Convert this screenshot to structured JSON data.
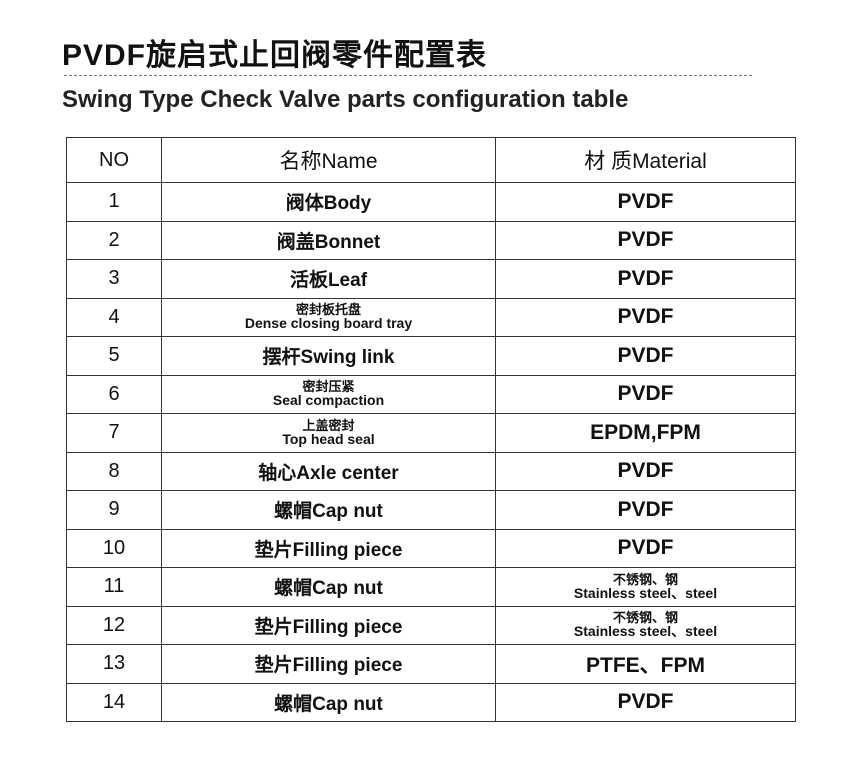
{
  "title": "PVDF旋启式止回阀零件配置表",
  "subtitle": "Swing Type Check Valve parts configuration table",
  "table": {
    "headers": [
      "NO",
      "名称Name",
      "材  质Material"
    ],
    "rows": [
      {
        "no": "1",
        "name": "阀体Body",
        "material": "PVDF"
      },
      {
        "no": "2",
        "name": "阀盖Bonnet",
        "material": "PVDF"
      },
      {
        "no": "3",
        "name": "活板Leaf",
        "material": "PVDF"
      },
      {
        "no": "4",
        "name_zh": "密封板托盘",
        "name_en": "Dense closing board tray",
        "material": "PVDF"
      },
      {
        "no": "5",
        "name": "摆杆Swing link",
        "material": "PVDF"
      },
      {
        "no": "6",
        "name_zh": "密封压紧",
        "name_en": "Seal  compaction",
        "material": "PVDF"
      },
      {
        "no": "7",
        "name_zh": "上盖密封",
        "name_en": "Top  head  seal",
        "material": "EPDM,FPM"
      },
      {
        "no": "8",
        "name": "轴心Axle center",
        "material": "PVDF"
      },
      {
        "no": "9",
        "name": "螺帽Cap nut",
        "material": "PVDF"
      },
      {
        "no": "10",
        "name": "垫片Filling piece",
        "material": "PVDF"
      },
      {
        "no": "11",
        "name": "螺帽Cap nut",
        "material_zh": "不锈钢、钢",
        "material_en": "Stainless steel、steel"
      },
      {
        "no": "12",
        "name": "垫片Filling piece",
        "material_zh": "不锈钢、钢",
        "material_en": "Stainless steel、steel"
      },
      {
        "no": "13",
        "name": "垫片Filling piece",
        "material": "PTFE、FPM"
      },
      {
        "no": "14",
        "name": "螺帽Cap nut",
        "material": "PVDF"
      }
    ]
  }
}
